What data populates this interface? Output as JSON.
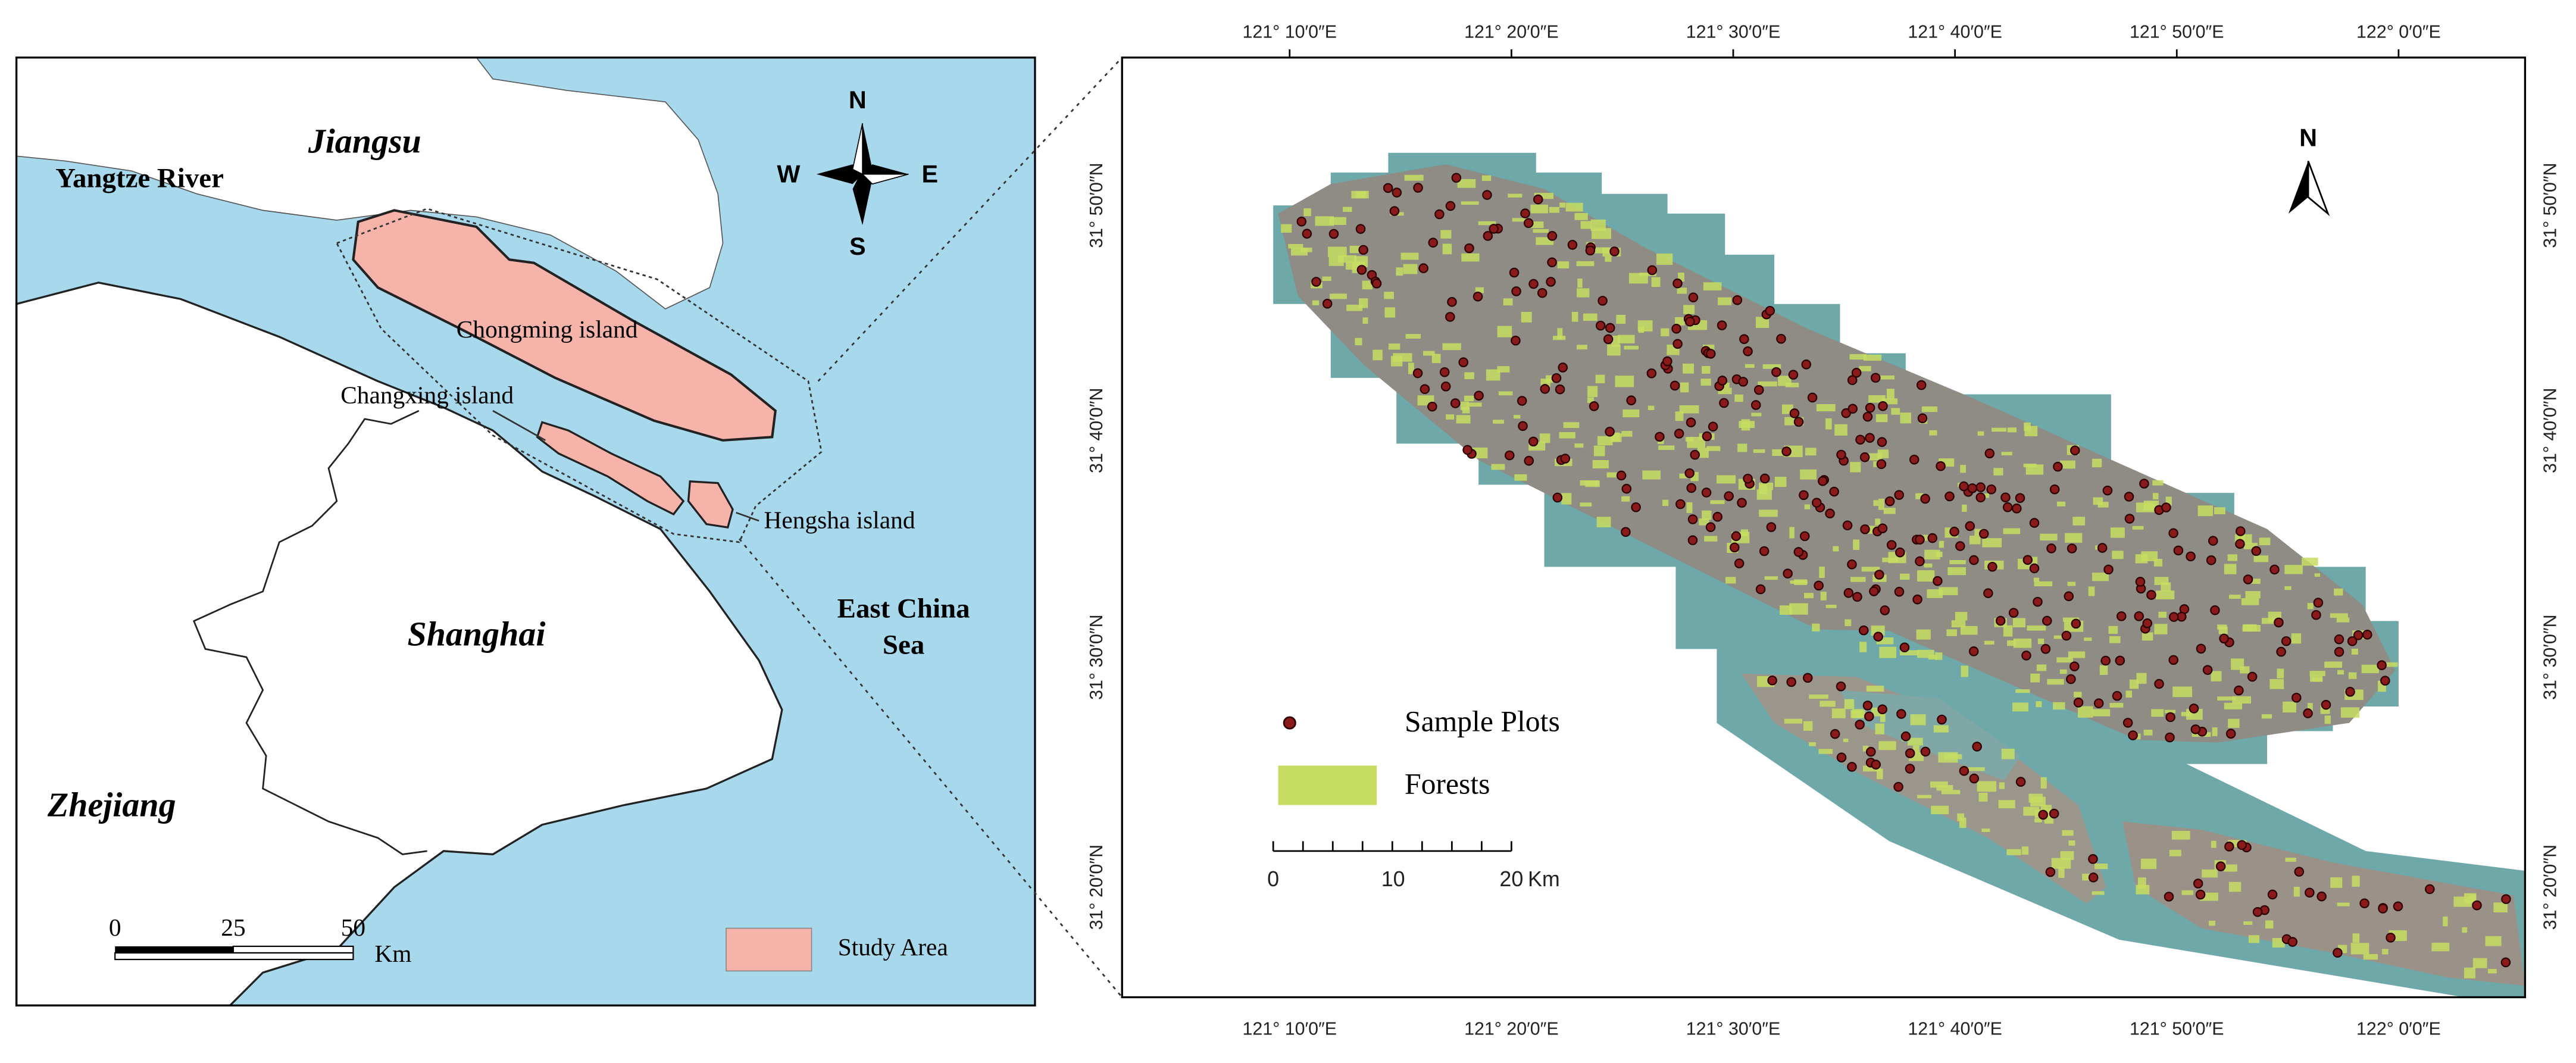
{
  "left_map": {
    "places": [
      "Jiangsu",
      "Yangtze River",
      "Chongming island",
      "Changxing island",
      "Hengsha island",
      "Shanghai",
      "East China",
      "Sea",
      "Zhejiang"
    ],
    "compass": [
      "N",
      "W",
      "E",
      "S"
    ],
    "scale": {
      "ticks": [
        0,
        25,
        50
      ],
      "unit": "Km"
    },
    "legend": "Study Area"
  },
  "right_map": {
    "lon_labels": [
      "121° 10′0″E",
      "121° 20′0″E",
      "121° 30′0″E",
      "121° 40′0″E",
      "121° 50′0″E",
      "122° 0′0″E"
    ],
    "lat_labels": [
      "31° 50′0″N",
      "31° 40′0″N",
      "31° 30′0″N",
      "31° 20′0″N"
    ],
    "compass": "N",
    "legend": [
      "Sample Plots",
      "Forests"
    ],
    "scale": {
      "ticks": [
        0,
        10,
        20
      ],
      "unit": "Km"
    }
  }
}
